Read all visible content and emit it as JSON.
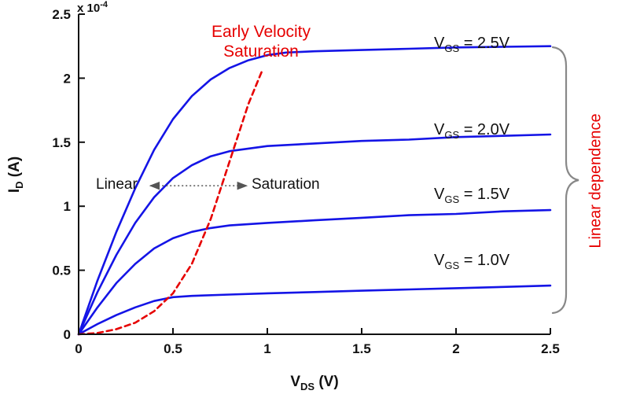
{
  "chart_data": {
    "type": "line",
    "title": "",
    "xlabel": {
      "base": "V",
      "sub": "DS",
      "unit": " (V)"
    },
    "ylabel": {
      "base": "I",
      "sub": "D",
      "unit": " (A)"
    },
    "y_multiplier": {
      "base": "x 10",
      "exp": "-4"
    },
    "xlim": [
      0,
      2.5
    ],
    "ylim": [
      0,
      2.5
    ],
    "xticks": [
      "0",
      "0.5",
      "1",
      "1.5",
      "2",
      "2.5"
    ],
    "yticks": [
      "0",
      "0.5",
      "1",
      "1.5",
      "2",
      "2.5"
    ],
    "grid": false,
    "legend": "inline-labels",
    "colors": {
      "curve_blue": "#1414e6",
      "locus_red": "#e60000",
      "axis_text": "#111111",
      "arrow_gray": "#555555",
      "brace_gray": "#888888"
    },
    "series": [
      {
        "name": "VGS = 2.5V",
        "label": {
          "base": "V",
          "sub": "GS",
          "rest": " = 2.5V"
        },
        "color": "#1414e6",
        "style": "solid",
        "x": [
          0,
          0.1,
          0.2,
          0.3,
          0.4,
          0.5,
          0.6,
          0.7,
          0.8,
          0.9,
          1.0,
          1.1,
          1.25,
          1.5,
          1.75,
          2.0,
          2.25,
          2.5
        ],
        "y": [
          0,
          0.42,
          0.8,
          1.14,
          1.44,
          1.68,
          1.86,
          1.99,
          2.08,
          2.14,
          2.18,
          2.2,
          2.21,
          2.22,
          2.23,
          2.24,
          2.245,
          2.25
        ]
      },
      {
        "name": "VGS = 2.0V",
        "label": {
          "base": "V",
          "sub": "GS",
          "rest": " = 2.0V"
        },
        "color": "#1414e6",
        "style": "solid",
        "x": [
          0,
          0.1,
          0.2,
          0.3,
          0.4,
          0.5,
          0.6,
          0.7,
          0.8,
          0.9,
          1.0,
          1.25,
          1.5,
          1.75,
          2.0,
          2.25,
          2.5
        ],
        "y": [
          0,
          0.33,
          0.62,
          0.87,
          1.07,
          1.22,
          1.32,
          1.39,
          1.43,
          1.45,
          1.47,
          1.49,
          1.51,
          1.52,
          1.54,
          1.55,
          1.56
        ]
      },
      {
        "name": "VGS = 1.5V",
        "label": {
          "base": "V",
          "sub": "GS",
          "rest": " = 1.5V"
        },
        "color": "#1414e6",
        "style": "solid",
        "x": [
          0,
          0.1,
          0.2,
          0.3,
          0.4,
          0.5,
          0.6,
          0.7,
          0.8,
          1.0,
          1.25,
          1.5,
          1.75,
          2.0,
          2.25,
          2.5
        ],
        "y": [
          0,
          0.21,
          0.4,
          0.55,
          0.67,
          0.75,
          0.8,
          0.83,
          0.85,
          0.87,
          0.89,
          0.91,
          0.93,
          0.94,
          0.96,
          0.97
        ]
      },
      {
        "name": "VGS = 1.0V",
        "label": {
          "base": "V",
          "sub": "GS",
          "rest": " = 1.0V"
        },
        "color": "#1414e6",
        "style": "solid",
        "x": [
          0,
          0.1,
          0.2,
          0.3,
          0.4,
          0.5,
          0.6,
          0.8,
          1.0,
          1.25,
          1.5,
          1.75,
          2.0,
          2.25,
          2.5
        ],
        "y": [
          0,
          0.08,
          0.15,
          0.21,
          0.26,
          0.29,
          0.3,
          0.31,
          0.32,
          0.33,
          0.34,
          0.35,
          0.36,
          0.37,
          0.38
        ]
      },
      {
        "name": "Early velocity saturation locus",
        "color": "#e60000",
        "style": "dashed",
        "x": [
          0,
          0.1,
          0.2,
          0.3,
          0.4,
          0.5,
          0.6,
          0.7,
          0.8,
          0.9,
          0.97
        ],
        "y": [
          0,
          0.01,
          0.04,
          0.09,
          0.18,
          0.32,
          0.55,
          0.9,
          1.35,
          1.8,
          2.05
        ]
      }
    ],
    "annotations": {
      "early_velocity": {
        "line1": "Early Velocity",
        "line2": "Saturation"
      },
      "region": {
        "linear": "Linear",
        "saturation": "Saturation",
        "arrow": {
          "x1": 0.38,
          "x2": 0.89,
          "y": 1.16
        }
      },
      "linear_dependence": "Linear dependence"
    }
  }
}
